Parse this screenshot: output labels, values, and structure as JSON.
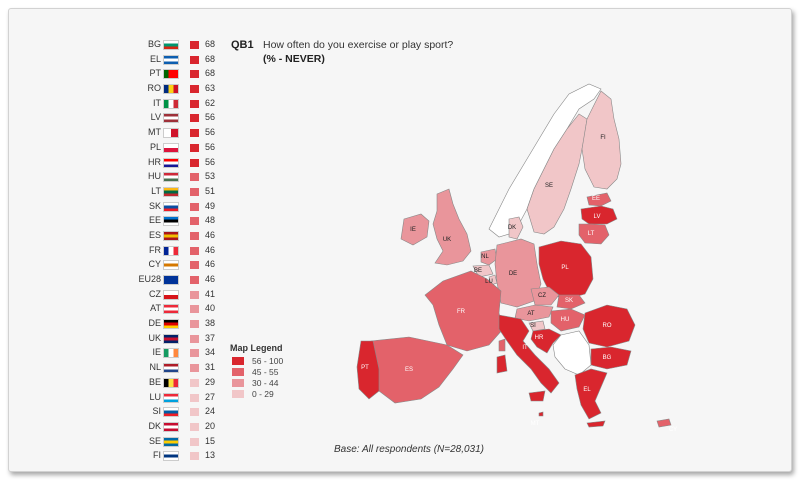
{
  "question": {
    "code": "QB1",
    "text": "How often do you exercise or play sport?",
    "subtitle": "(% - NEVER)"
  },
  "countries": [
    {
      "code": "BG",
      "value": 68,
      "flag": [
        "#ffffff",
        "#00966e",
        "#d62612"
      ]
    },
    {
      "code": "EL",
      "value": 68,
      "flag": [
        "#0d5eaf",
        "#ffffff",
        "#0d5eaf"
      ]
    },
    {
      "code": "PT",
      "value": 68,
      "flag": [
        "#006600",
        "#ff0000",
        "#ff0000"
      ],
      "vertical": true
    },
    {
      "code": "RO",
      "value": 63,
      "flag": [
        "#002b7f",
        "#fcd116",
        "#ce1126"
      ],
      "vertical": true
    },
    {
      "code": "IT",
      "value": 62,
      "flag": [
        "#009246",
        "#ffffff",
        "#ce2b37"
      ],
      "vertical": true
    },
    {
      "code": "LV",
      "value": 56,
      "flag": [
        "#9e3039",
        "#ffffff",
        "#9e3039"
      ]
    },
    {
      "code": "MT",
      "value": 56,
      "flag": [
        "#ffffff",
        "#cf142b"
      ],
      "vertical": true
    },
    {
      "code": "PL",
      "value": 56,
      "flag": [
        "#ffffff",
        "#dc143c"
      ]
    },
    {
      "code": "HR",
      "value": 56,
      "flag": [
        "#ff0000",
        "#ffffff",
        "#171796"
      ]
    },
    {
      "code": "HU",
      "value": 53,
      "flag": [
        "#ce2939",
        "#ffffff",
        "#477050"
      ]
    },
    {
      "code": "LT",
      "value": 51,
      "flag": [
        "#fdb913",
        "#006a44",
        "#c1272d"
      ]
    },
    {
      "code": "SK",
      "value": 49,
      "flag": [
        "#ffffff",
        "#0b4ea2",
        "#ee1c25"
      ]
    },
    {
      "code": "EE",
      "value": 48,
      "flag": [
        "#0072ce",
        "#000000",
        "#ffffff"
      ]
    },
    {
      "code": "ES",
      "value": 46,
      "flag": [
        "#aa151b",
        "#f1bf00",
        "#aa151b"
      ]
    },
    {
      "code": "FR",
      "value": 46,
      "flag": [
        "#002395",
        "#ffffff",
        "#ed2939"
      ],
      "vertical": true
    },
    {
      "code": "CY",
      "value": 46,
      "flag": [
        "#ffffff",
        "#d57800",
        "#ffffff"
      ]
    },
    {
      "code": "EU28",
      "value": 46,
      "flag": [
        "#003399",
        "#003399",
        "#003399"
      ]
    },
    {
      "code": "CZ",
      "value": 41,
      "flag": [
        "#ffffff",
        "#d7141a"
      ]
    },
    {
      "code": "AT",
      "value": 40,
      "flag": [
        "#ed2939",
        "#ffffff",
        "#ed2939"
      ]
    },
    {
      "code": "DE",
      "value": 38,
      "flag": [
        "#000000",
        "#dd0000",
        "#ffce00"
      ]
    },
    {
      "code": "UK",
      "value": 37,
      "flag": [
        "#012169",
        "#c8102e",
        "#012169"
      ]
    },
    {
      "code": "IE",
      "value": 34,
      "flag": [
        "#169b62",
        "#ffffff",
        "#ff883e"
      ],
      "vertical": true
    },
    {
      "code": "NL",
      "value": 31,
      "flag": [
        "#ae1c28",
        "#ffffff",
        "#21468b"
      ]
    },
    {
      "code": "BE",
      "value": 29,
      "flag": [
        "#000000",
        "#fae042",
        "#ed2939"
      ],
      "vertical": true
    },
    {
      "code": "LU",
      "value": 27,
      "flag": [
        "#ed2939",
        "#ffffff",
        "#00a1de"
      ]
    },
    {
      "code": "SI",
      "value": 24,
      "flag": [
        "#ffffff",
        "#005da4",
        "#ed1c24"
      ]
    },
    {
      "code": "DK",
      "value": 20,
      "flag": [
        "#c60c30",
        "#ffffff",
        "#c60c30"
      ]
    },
    {
      "code": "SE",
      "value": 15,
      "flag": [
        "#006aa7",
        "#fecc00",
        "#006aa7"
      ]
    },
    {
      "code": "FI",
      "value": 13,
      "flag": [
        "#ffffff",
        "#003580",
        "#ffffff"
      ]
    }
  ],
  "legend": {
    "title": "Map Legend",
    "items": [
      {
        "label": "56 - 100",
        "color": "#d9262e"
      },
      {
        "label": "45 - 55",
        "color": "#e3626a"
      },
      {
        "label": "30 - 44",
        "color": "#e9959b"
      },
      {
        "label": "0 - 29",
        "color": "#f1c6c8"
      }
    ]
  },
  "base_note": "Base: All respondents (N=28,031)"
}
